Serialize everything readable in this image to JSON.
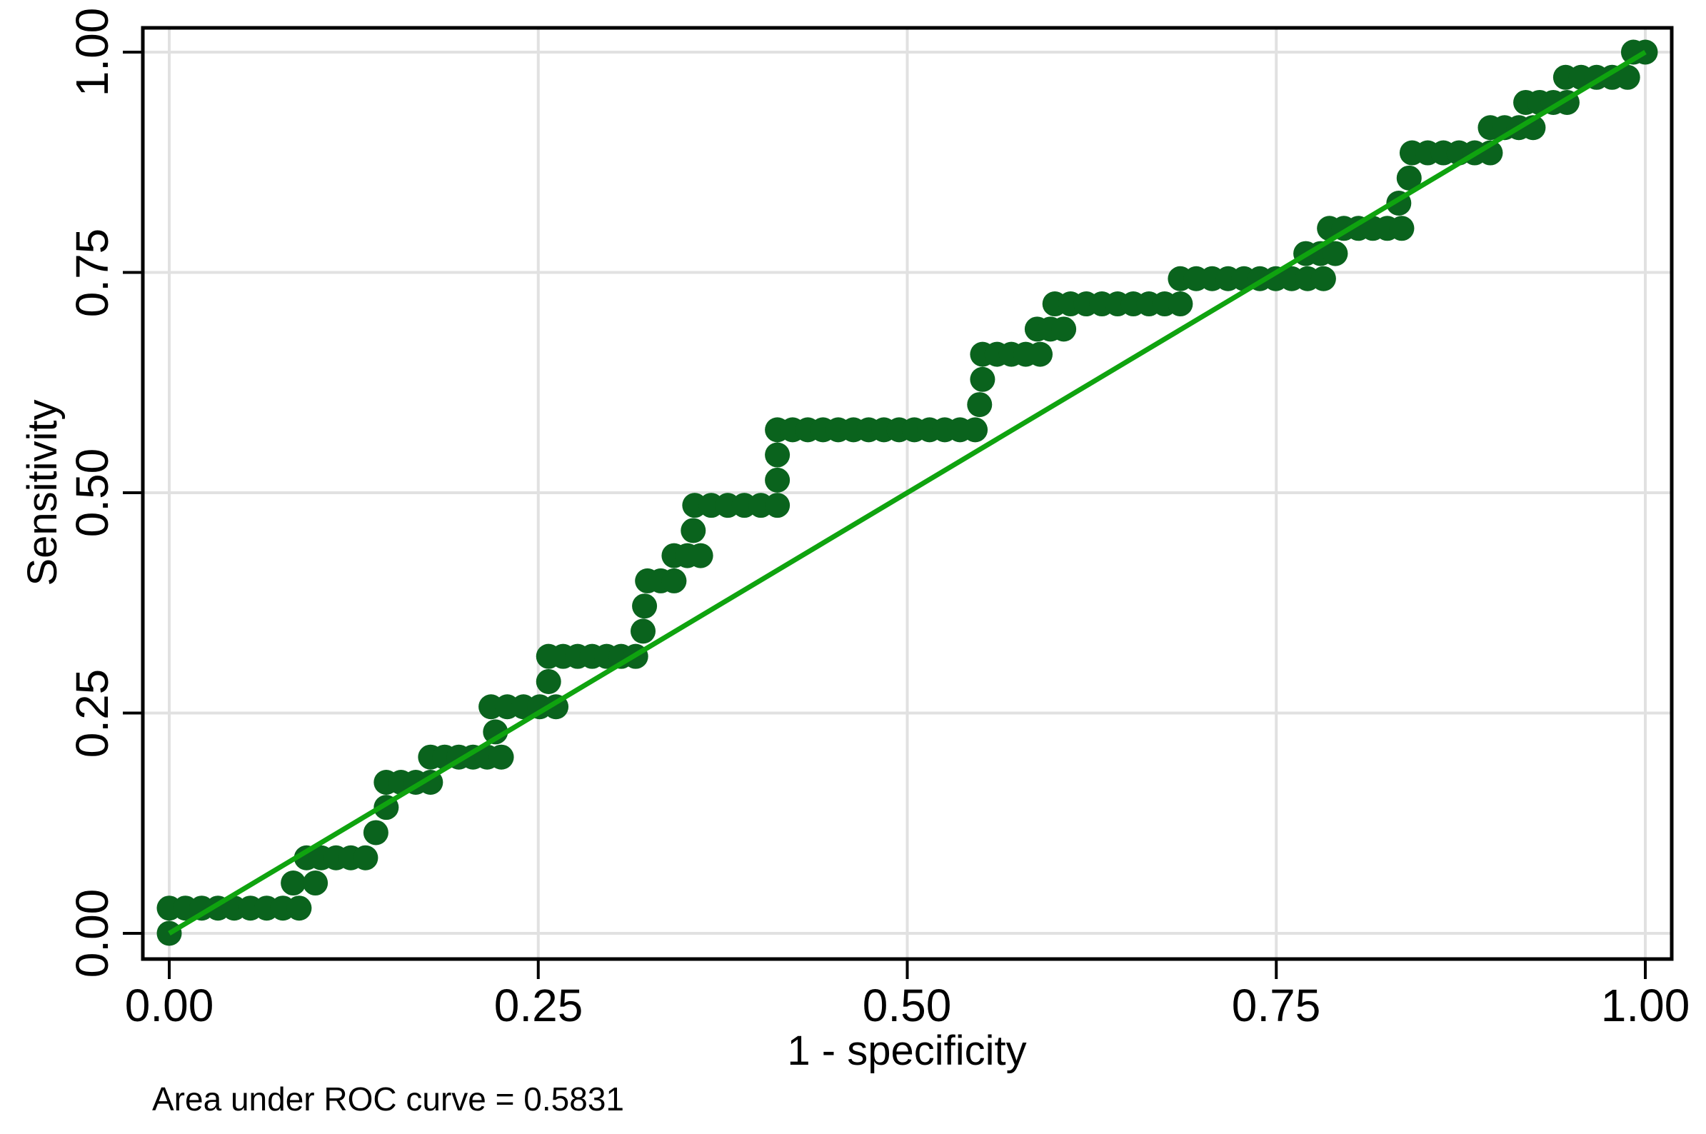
{
  "chart_data": {
    "type": "scatter",
    "subtype": "roc-curve",
    "title": "",
    "xlabel": "1 - specificity",
    "ylabel": "Sensitivity",
    "note": "Area under ROC curve = 0.5831",
    "auc": 0.5831,
    "xlim": [
      0,
      1
    ],
    "ylim": [
      0,
      1
    ],
    "grid": true,
    "x_tick_values": [
      0,
      0.25,
      0.5,
      0.75,
      1
    ],
    "y_tick_values": [
      0,
      0.25,
      0.5,
      0.75,
      1
    ],
    "x_tick_labels": [
      "0.00",
      "0.25",
      "0.50",
      "0.75",
      "1.00"
    ],
    "y_tick_labels": [
      "0.00",
      "0.25",
      "0.50",
      "0.75",
      "1.00"
    ],
    "colors": {
      "marker": "#0a631d",
      "reference_line": "#0fa30f",
      "grid": "#e1e1e1",
      "axis": "#000000",
      "background": "#ffffff"
    },
    "series": [
      {
        "name": "ROC points",
        "type": "step-dots",
        "marker": "circle",
        "steps": [
          [
            0.0,
            0.0,
            0.0
          ],
          [
            0.0,
            0.088,
            0.0286
          ],
          [
            0.084,
            0.099,
            0.0571
          ],
          [
            0.093,
            0.133,
            0.0857
          ],
          [
            0.14,
            0.14,
            0.1143
          ],
          [
            0.147,
            0.147,
            0.1429
          ],
          [
            0.147,
            0.177,
            0.1714
          ],
          [
            0.177,
            0.225,
            0.2
          ],
          [
            0.221,
            0.221,
            0.2286
          ],
          [
            0.218,
            0.262,
            0.2571
          ],
          [
            0.257,
            0.257,
            0.2857
          ],
          [
            0.257,
            0.316,
            0.3143
          ],
          [
            0.321,
            0.321,
            0.3429
          ],
          [
            0.322,
            0.322,
            0.3714
          ],
          [
            0.324,
            0.342,
            0.4
          ],
          [
            0.342,
            0.36,
            0.4286
          ],
          [
            0.355,
            0.355,
            0.4571
          ],
          [
            0.356,
            0.412,
            0.4857
          ],
          [
            0.412,
            0.412,
            0.5143
          ],
          [
            0.412,
            0.412,
            0.5429
          ],
          [
            0.412,
            0.546,
            0.5714
          ],
          [
            0.549,
            0.549,
            0.6
          ],
          [
            0.551,
            0.551,
            0.6286
          ],
          [
            0.551,
            0.59,
            0.6571
          ],
          [
            0.588,
            0.606,
            0.6857
          ],
          [
            0.6,
            0.685,
            0.7143
          ],
          [
            0.685,
            0.782,
            0.7429
          ],
          [
            0.77,
            0.79,
            0.7714
          ],
          [
            0.786,
            0.835,
            0.8
          ],
          [
            0.833,
            0.833,
            0.8286
          ],
          [
            0.84,
            0.84,
            0.8571
          ],
          [
            0.842,
            0.895,
            0.8857
          ],
          [
            0.895,
            0.924,
            0.9143
          ],
          [
            0.919,
            0.947,
            0.9429
          ],
          [
            0.946,
            0.988,
            0.9714
          ],
          [
            0.992,
            1.0,
            1.0
          ]
        ]
      },
      {
        "name": "Reference line",
        "type": "line",
        "points": [
          [
            0,
            0
          ],
          [
            1,
            1
          ]
        ]
      }
    ]
  }
}
